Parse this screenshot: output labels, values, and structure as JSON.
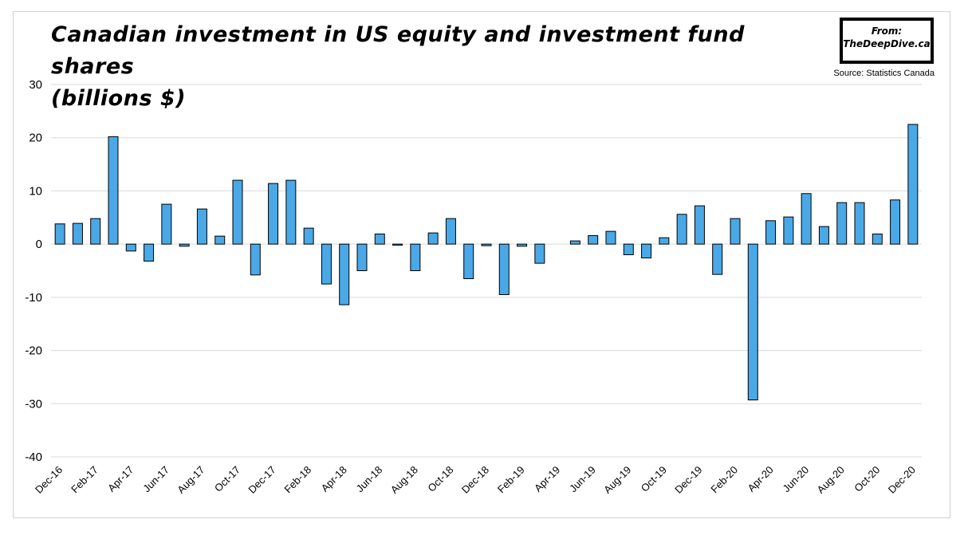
{
  "header": {
    "title_line1": "Canadian investment in US equity and investment fund shares",
    "title_line2": "(billions $)",
    "badge_from": "From:",
    "badge_site": "TheDeepDive.ca",
    "source": "Source: Statistics Canada"
  },
  "colors": {
    "bar_fill": "#4aa8e6",
    "bar_stroke": "#000000",
    "grid": "#d9d9d9"
  },
  "chart_data": {
    "type": "bar",
    "title": "Canadian investment in US equity and investment fund shares (billions $)",
    "xlabel": "",
    "ylabel": "",
    "ylim": [
      -40,
      30
    ],
    "yticks": [
      30,
      20,
      10,
      0,
      -10,
      -20,
      -30,
      -40
    ],
    "grid": true,
    "legend": "none",
    "categories": [
      "Dec-16",
      "Jan-17",
      "Feb-17",
      "Mar-17",
      "Apr-17",
      "May-17",
      "Jun-17",
      "Jul-17",
      "Aug-17",
      "Sep-17",
      "Oct-17",
      "Nov-17",
      "Dec-17",
      "Jan-18",
      "Feb-18",
      "Mar-18",
      "Apr-18",
      "May-18",
      "Jun-18",
      "Jul-18",
      "Aug-18",
      "Sep-18",
      "Oct-18",
      "Nov-18",
      "Dec-18",
      "Jan-19",
      "Feb-19",
      "Mar-19",
      "Apr-19",
      "May-19",
      "Jun-19",
      "Jul-19",
      "Aug-19",
      "Sep-19",
      "Oct-19",
      "Nov-19",
      "Dec-19",
      "Jan-20",
      "Feb-20",
      "Mar-20",
      "Apr-20",
      "May-20",
      "Jun-20",
      "Jul-20",
      "Aug-20",
      "Sep-20",
      "Oct-20",
      "Nov-20",
      "Dec-20"
    ],
    "tick_labels": [
      "Dec-16",
      "Feb-17",
      "Apr-17",
      "Jun-17",
      "Aug-17",
      "Oct-17",
      "Dec-17",
      "Feb-18",
      "Apr-18",
      "Jun-18",
      "Aug-18",
      "Oct-18",
      "Dec-18",
      "Feb-19",
      "Apr-19",
      "Jun-19",
      "Aug-19",
      "Oct-19",
      "Dec-19",
      "Feb-20",
      "Apr-20",
      "Jun-20",
      "Aug-20",
      "Oct-20",
      "Dec-20"
    ],
    "values": [
      3.8,
      3.9,
      4.8,
      20.2,
      -1.3,
      -3.2,
      7.5,
      -0.4,
      6.6,
      1.5,
      12.0,
      -5.8,
      11.4,
      12.0,
      3.0,
      -7.5,
      -11.4,
      -5.0,
      1.9,
      -0.2,
      -5.0,
      2.1,
      4.8,
      -6.5,
      -0.3,
      -9.5,
      -0.4,
      -3.6,
      0.0,
      0.6,
      1.6,
      2.4,
      -2.0,
      -2.6,
      1.2,
      5.6,
      7.2,
      -5.7,
      4.8,
      -29.3,
      4.4,
      5.1,
      9.5,
      3.3,
      7.8,
      7.8,
      1.9,
      8.3,
      22.5
    ]
  }
}
